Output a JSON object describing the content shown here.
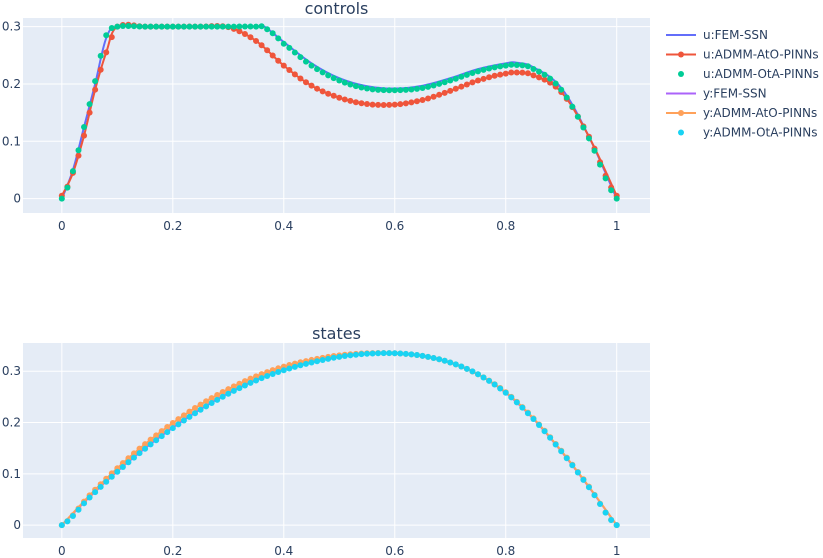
{
  "chart_data": [
    {
      "type": "line",
      "title": "controls",
      "xlabel": "",
      "ylabel": "",
      "xlim": [
        -0.07,
        1.06
      ],
      "ylim": [
        -0.025,
        0.315
      ],
      "xticks": [
        0,
        0.2,
        0.4,
        0.6,
        0.8,
        1
      ],
      "xtick_labels": [
        "0",
        "0.2",
        "0.4",
        "0.6",
        "0.8",
        "1"
      ],
      "yticks": [
        0,
        0.1,
        0.2,
        0.3
      ],
      "ytick_labels": [
        "0",
        "0.1",
        "0.2",
        "0.3"
      ],
      "grid": true,
      "plot_bg": "#e5ecf6",
      "series": [
        {
          "name": "u:FEM-SSN",
          "mode": "lines",
          "color": "#636efa",
          "x": [
            0,
            0.02,
            0.04,
            0.06,
            0.08,
            0.1,
            0.15,
            0.2,
            0.25,
            0.3,
            0.35,
            0.365,
            0.4,
            0.45,
            0.5,
            0.55,
            0.6,
            0.65,
            0.7,
            0.75,
            0.8,
            0.82,
            0.85,
            0.9,
            0.95,
            1.0
          ],
          "y": [
            0,
            0.05,
            0.125,
            0.2,
            0.28,
            0.3,
            0.3,
            0.3,
            0.3,
            0.3,
            0.3,
            0.3,
            0.273,
            0.236,
            0.21,
            0.196,
            0.192,
            0.197,
            0.21,
            0.226,
            0.236,
            0.237,
            0.229,
            0.193,
            0.108,
            0
          ]
        },
        {
          "name": "u:ADMM-AtO-PINNs",
          "mode": "lines+markers",
          "color": "#ef553b",
          "x": [
            0,
            0.02,
            0.04,
            0.06,
            0.08,
            0.1,
            0.15,
            0.2,
            0.25,
            0.3,
            0.35,
            0.4,
            0.45,
            0.5,
            0.55,
            0.6,
            0.65,
            0.7,
            0.75,
            0.8,
            0.82,
            0.85,
            0.9,
            0.95,
            1.0
          ],
          "y": [
            0.005,
            0.045,
            0.11,
            0.19,
            0.255,
            0.3,
            0.3,
            0.3,
            0.3,
            0.299,
            0.275,
            0.232,
            0.197,
            0.176,
            0.165,
            0.164,
            0.172,
            0.188,
            0.206,
            0.218,
            0.22,
            0.215,
            0.186,
            0.108,
            0.005
          ]
        },
        {
          "name": "u:ADMM-OtA-PINNs",
          "mode": "markers",
          "color": "#00cc96",
          "x": [
            0,
            0.02,
            0.04,
            0.06,
            0.08,
            0.1,
            0.15,
            0.2,
            0.25,
            0.3,
            0.35,
            0.365,
            0.4,
            0.45,
            0.5,
            0.55,
            0.6,
            0.65,
            0.7,
            0.75,
            0.8,
            0.82,
            0.85,
            0.9,
            0.95,
            1.0
          ],
          "y": [
            0,
            0.048,
            0.125,
            0.205,
            0.285,
            0.3,
            0.3,
            0.3,
            0.3,
            0.3,
            0.3,
            0.298,
            0.27,
            0.232,
            0.206,
            0.192,
            0.189,
            0.193,
            0.206,
            0.222,
            0.232,
            0.233,
            0.226,
            0.19,
            0.105,
            0
          ]
        }
      ]
    },
    {
      "type": "line",
      "title": "states",
      "xlabel": "",
      "ylabel": "",
      "xlim": [
        -0.07,
        1.06
      ],
      "ylim": [
        -0.025,
        0.355
      ],
      "xticks": [
        0,
        0.2,
        0.4,
        0.6,
        0.8,
        1
      ],
      "xtick_labels": [
        "0",
        "0.2",
        "0.4",
        "0.6",
        "0.8",
        "1"
      ],
      "yticks": [
        0,
        0.1,
        0.2,
        0.3
      ],
      "ytick_labels": [
        "0",
        "0.1",
        "0.2",
        "0.3"
      ],
      "grid": true,
      "plot_bg": "#e5ecf6",
      "series": [
        {
          "name": "y:FEM-SSN",
          "mode": "lines",
          "color": "#ab63fa",
          "x": [
            0,
            0.05,
            0.1,
            0.15,
            0.2,
            0.25,
            0.3,
            0.35,
            0.4,
            0.45,
            0.5,
            0.55,
            0.6,
            0.65,
            0.7,
            0.75,
            0.8,
            0.85,
            0.9,
            0.95,
            1.0
          ],
          "y": [
            0,
            0.055,
            0.105,
            0.15,
            0.19,
            0.226,
            0.257,
            0.283,
            0.303,
            0.318,
            0.328,
            0.334,
            0.335,
            0.33,
            0.317,
            0.294,
            0.258,
            0.207,
            0.144,
            0.074,
            0
          ]
        },
        {
          "name": "y:ADMM-AtO-PINNs",
          "mode": "lines+markers",
          "color": "#ffa15a",
          "x": [
            0,
            0.05,
            0.1,
            0.15,
            0.2,
            0.25,
            0.3,
            0.35,
            0.4,
            0.45,
            0.5,
            0.55,
            0.6,
            0.65,
            0.7,
            0.75,
            0.8,
            0.85,
            0.9,
            0.95,
            1.0
          ],
          "y": [
            0,
            0.058,
            0.111,
            0.158,
            0.199,
            0.235,
            0.265,
            0.29,
            0.309,
            0.322,
            0.331,
            0.335,
            0.335,
            0.33,
            0.317,
            0.294,
            0.259,
            0.208,
            0.145,
            0.075,
            0
          ]
        },
        {
          "name": "y:ADMM-OtA-PINNs",
          "mode": "markers",
          "color": "#19d3f3",
          "x": [
            0,
            0.05,
            0.1,
            0.15,
            0.2,
            0.25,
            0.3,
            0.35,
            0.4,
            0.45,
            0.5,
            0.55,
            0.6,
            0.65,
            0.7,
            0.75,
            0.8,
            0.85,
            0.9,
            0.95,
            1.0
          ],
          "y": [
            0,
            0.054,
            0.104,
            0.149,
            0.189,
            0.225,
            0.256,
            0.282,
            0.302,
            0.317,
            0.328,
            0.334,
            0.335,
            0.33,
            0.317,
            0.294,
            0.258,
            0.207,
            0.144,
            0.074,
            0
          ]
        }
      ]
    }
  ],
  "legend": {
    "placement": "top-right",
    "items": [
      {
        "label": "u:FEM-SSN",
        "color": "#636efa",
        "mode": "lines"
      },
      {
        "label": "u:ADMM-AtO-PINNs",
        "color": "#ef553b",
        "mode": "lines+markers"
      },
      {
        "label": "u:ADMM-OtA-PINNs",
        "color": "#00cc96",
        "mode": "markers"
      },
      {
        "label": "y:FEM-SSN",
        "color": "#ab63fa",
        "mode": "lines"
      },
      {
        "label": "y:ADMM-AtO-PINNs",
        "color": "#ffa15a",
        "mode": "lines+markers"
      },
      {
        "label": "y:ADMM-OtA-PINNs",
        "color": "#19d3f3",
        "mode": "markers"
      }
    ]
  }
}
